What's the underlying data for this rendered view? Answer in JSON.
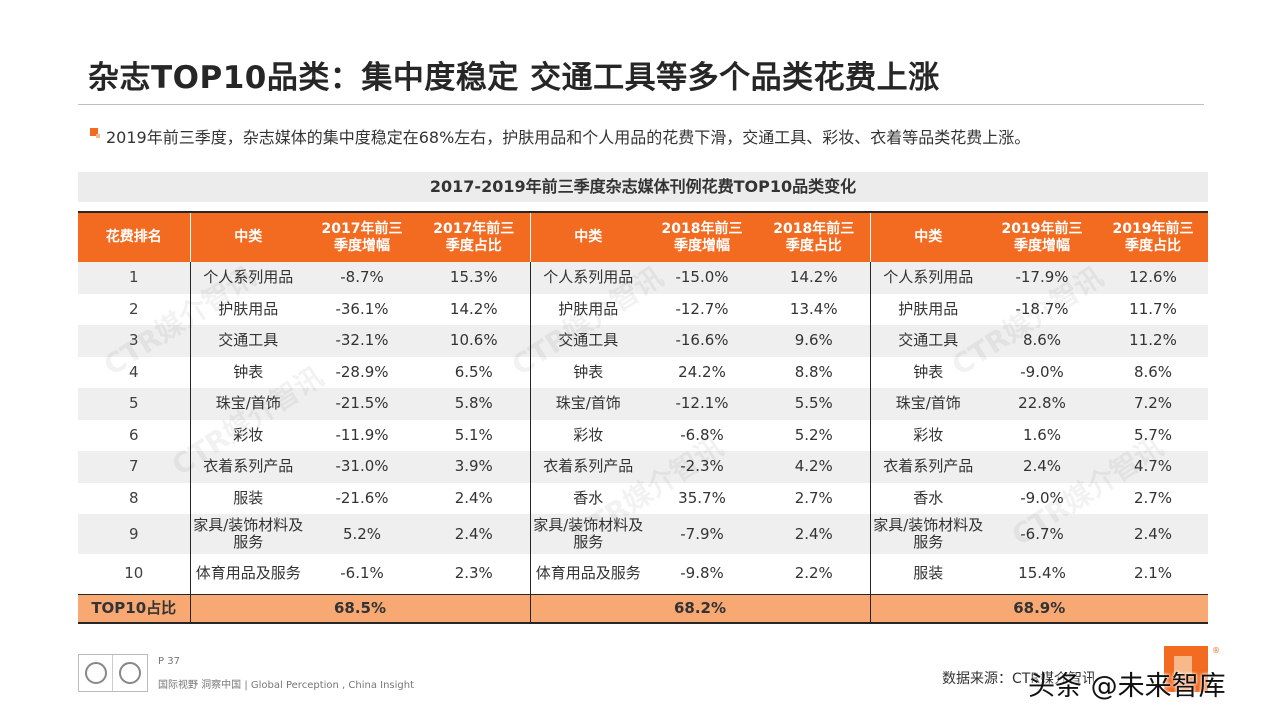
{
  "title": "杂志TOP10品类：集中度稳定 交通工具等多个品类花费上涨",
  "subtitle": "2019年前三季度，杂志媒体的集中度稳定在68%左右，护肤用品和个人用品的花费下滑，交通工具、彩妆、衣着等品类花费上涨。",
  "table": {
    "title": "2017-2019年前三季度杂志媒体刊例花费TOP10品类变化",
    "headers": [
      "花费排名",
      "中类",
      "2017年前三季度增幅",
      "2017年前三季度占比",
      "中类",
      "2018年前三季度增幅",
      "2018年前三季度占比",
      "中类",
      "2019年前三季度增幅",
      "2019年前三季度占比"
    ],
    "rows": [
      [
        "1",
        "个人系列用品",
        "-8.7%",
        "15.3%",
        "个人系列用品",
        "-15.0%",
        "14.2%",
        "个人系列用品",
        "-17.9%",
        "12.6%"
      ],
      [
        "2",
        "护肤用品",
        "-36.1%",
        "14.2%",
        "护肤用品",
        "-12.7%",
        "13.4%",
        "护肤用品",
        "-18.7%",
        "11.7%"
      ],
      [
        "3",
        "交通工具",
        "-32.1%",
        "10.6%",
        "交通工具",
        "-16.6%",
        "9.6%",
        "交通工具",
        "8.6%",
        "11.2%"
      ],
      [
        "4",
        "钟表",
        "-28.9%",
        "6.5%",
        "钟表",
        "24.2%",
        "8.8%",
        "钟表",
        "-9.0%",
        "8.6%"
      ],
      [
        "5",
        "珠宝/首饰",
        "-21.5%",
        "5.8%",
        "珠宝/首饰",
        "-12.1%",
        "5.5%",
        "珠宝/首饰",
        "22.8%",
        "7.2%"
      ],
      [
        "6",
        "彩妆",
        "-11.9%",
        "5.1%",
        "彩妆",
        "-6.8%",
        "5.2%",
        "彩妆",
        "1.6%",
        "5.7%"
      ],
      [
        "7",
        "衣着系列产品",
        "-31.0%",
        "3.9%",
        "衣着系列产品",
        "-2.3%",
        "4.2%",
        "衣着系列产品",
        "2.4%",
        "4.7%"
      ],
      [
        "8",
        "服装",
        "-21.6%",
        "2.4%",
        "香水",
        "35.7%",
        "2.7%",
        "香水",
        "-9.0%",
        "2.7%"
      ],
      [
        "9",
        "家具/装饰材料及服务",
        "5.2%",
        "2.4%",
        "家具/装饰材料及服务",
        "-7.9%",
        "2.4%",
        "家具/装饰材料及服务",
        "-6.7%",
        "2.4%"
      ],
      [
        "10",
        "体育用品及服务",
        "-6.1%",
        "2.3%",
        "体育用品及服务",
        "-9.8%",
        "2.2%",
        "服装",
        "15.4%",
        "2.1%"
      ]
    ],
    "footer_label": "TOP10占比",
    "footer_values": [
      "68.5%",
      "68.2%",
      "68.9%"
    ]
  },
  "watermark": "CTR媒介智讯",
  "footer": {
    "page": "P 37",
    "text": "国际视野  洞察中国 | Global Perception , China Insight",
    "source": "数据来源：CTR媒介智讯",
    "overlay": "头条 @未来智库"
  },
  "colors": {
    "accent": "#f26b21",
    "accent_light": "#f8a873",
    "band": "#efefef"
  }
}
